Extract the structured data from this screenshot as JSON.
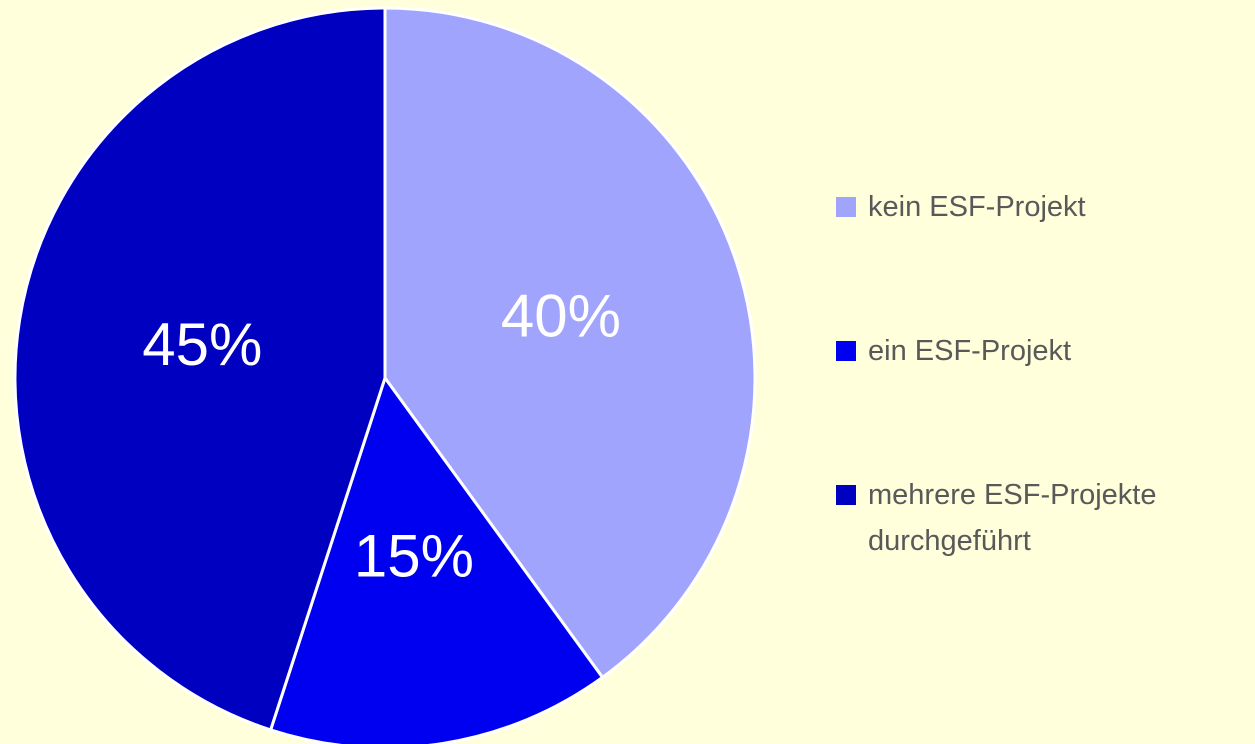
{
  "chart_data": {
    "type": "pie",
    "categories": [
      "kein ESF-Projekt",
      "ein ESF-Projekt",
      "mehrere ESF-Projekte durchgeführt"
    ],
    "values": [
      40,
      15,
      45
    ],
    "value_labels": [
      "40%",
      "15%",
      "45%"
    ],
    "colors": [
      "#a0a4fc",
      "#0000f0",
      "#0000c0"
    ],
    "legend": "right"
  }
}
